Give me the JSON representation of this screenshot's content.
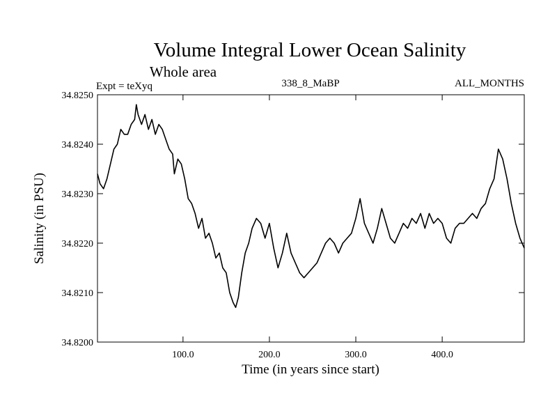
{
  "header": {
    "title": "Volume Integral Lower Ocean Salinity",
    "subtitle": "Whole area",
    "expt_label": "Expt = teXyq",
    "run_id": "338_8_MaBP",
    "months_label": "ALL_MONTHS"
  },
  "chart_data": {
    "type": "line",
    "xlabel": "Time (in years since start)",
    "ylabel": "Salinity (in PSU)",
    "xlim": [
      1,
      495
    ],
    "ylim": [
      34.82,
      34.825
    ],
    "xticks": [
      100,
      200,
      300,
      400
    ],
    "xtick_labels": [
      "100.0",
      "200.0",
      "300.0",
      "400.0"
    ],
    "yticks": [
      34.82,
      34.821,
      34.822,
      34.823,
      34.824,
      34.825
    ],
    "ytick_labels": [
      "34.8200",
      "34.8210",
      "34.8220",
      "34.8230",
      "34.8240",
      "34.8250"
    ],
    "grid": false,
    "series": [
      {
        "color": "#000000",
        "x": [
          1,
          4,
          8,
          12,
          16,
          20,
          24,
          28,
          32,
          36,
          40,
          44,
          46,
          48,
          52,
          56,
          60,
          64,
          68,
          72,
          76,
          80,
          84,
          88,
          90,
          94,
          98,
          102,
          106,
          110,
          114,
          118,
          122,
          126,
          130,
          134,
          138,
          142,
          146,
          150,
          154,
          158,
          161,
          164,
          168,
          172,
          176,
          180,
          185,
          190,
          195,
          200,
          205,
          210,
          215,
          220,
          225,
          230,
          235,
          240,
          245,
          250,
          255,
          260,
          265,
          270,
          275,
          280,
          285,
          290,
          295,
          300,
          305,
          310,
          315,
          320,
          325,
          330,
          335,
          340,
          345,
          350,
          355,
          360,
          365,
          370,
          375,
          380,
          385,
          390,
          395,
          400,
          405,
          410,
          415,
          420,
          425,
          430,
          435,
          440,
          445,
          450,
          455,
          460,
          465,
          470,
          475,
          480,
          485,
          490,
          495
        ],
        "values": [
          34.8234,
          34.8232,
          34.8231,
          34.8233,
          34.8236,
          34.8239,
          34.824,
          34.8243,
          34.8242,
          34.8242,
          34.8244,
          34.8245,
          34.8248,
          34.8246,
          34.8244,
          34.8246,
          34.8243,
          34.8245,
          34.8242,
          34.8244,
          34.8243,
          34.8241,
          34.8239,
          34.8238,
          34.8234,
          34.8237,
          34.8236,
          34.8233,
          34.8229,
          34.8228,
          34.8226,
          34.8223,
          34.8225,
          34.8221,
          34.8222,
          34.822,
          34.8217,
          34.8218,
          34.8215,
          34.8214,
          34.821,
          34.8208,
          34.8207,
          34.8209,
          34.8214,
          34.8218,
          34.822,
          34.8223,
          34.8225,
          34.8224,
          34.8221,
          34.8224,
          34.8219,
          34.8215,
          34.8218,
          34.8222,
          34.8218,
          34.8216,
          34.8214,
          34.8213,
          34.8214,
          34.8215,
          34.8216,
          34.8218,
          34.822,
          34.8221,
          34.822,
          34.8218,
          34.822,
          34.8221,
          34.8222,
          34.8225,
          34.8229,
          34.8224,
          34.8222,
          34.822,
          34.8223,
          34.8227,
          34.8224,
          34.8221,
          34.822,
          34.8222,
          34.8224,
          34.8223,
          34.8225,
          34.8224,
          34.8226,
          34.8223,
          34.8226,
          34.8224,
          34.8225,
          34.8224,
          34.8221,
          34.822,
          34.8223,
          34.8224,
          34.8224,
          34.8225,
          34.8226,
          34.8225,
          34.8227,
          34.8228,
          34.8231,
          34.8233,
          34.8239,
          34.8237,
          34.8233,
          34.8228,
          34.8224,
          34.8221,
          34.8219
        ]
      }
    ]
  }
}
